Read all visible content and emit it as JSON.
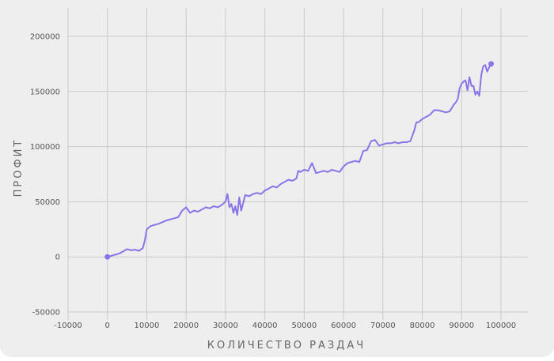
{
  "chart_data": {
    "type": "line",
    "title": "",
    "xlabel": "КОЛИЧЕСТВО РАЗДАЧ",
    "ylabel": "ПРОФИТ",
    "xlim": [
      -10000,
      105000
    ],
    "ylim": [
      -50000,
      210000
    ],
    "xticks": [
      -10000,
      0,
      10000,
      20000,
      30000,
      40000,
      50000,
      60000,
      70000,
      80000,
      90000,
      100000
    ],
    "yticks": [
      -50000,
      0,
      50000,
      100000,
      150000,
      200000
    ],
    "grid": true,
    "legend": "none",
    "series": [
      {
        "color": "#8b73e8",
        "x": [
          0,
          1000,
          2000,
          3000,
          4000,
          5000,
          6000,
          7000,
          8000,
          9000,
          9500,
          10000,
          11000,
          12000,
          13000,
          15000,
          17000,
          18000,
          19000,
          20000,
          21000,
          22000,
          23000,
          24000,
          25000,
          26000,
          27000,
          28000,
          29000,
          30000,
          30500,
          31000,
          31500,
          32000,
          32500,
          33000,
          33500,
          34000,
          35000,
          36000,
          37000,
          38000,
          39000,
          40000,
          41000,
          42000,
          43000,
          44000,
          45000,
          46000,
          47000,
          48000,
          48500,
          49000,
          50000,
          51000,
          52000,
          53000,
          54000,
          55000,
          56000,
          57000,
          58000,
          59000,
          60000,
          61000,
          62000,
          63000,
          64000,
          65000,
          66000,
          67000,
          68000,
          69000,
          70000,
          71000,
          72000,
          73000,
          74000,
          75000,
          76000,
          77000,
          77500,
          78000,
          78500,
          79000,
          80000,
          81000,
          82000,
          83000,
          84000,
          85000,
          86000,
          87000,
          88000,
          88500,
          89000,
          89500,
          90000,
          90500,
          91000,
          91500,
          92000,
          92500,
          93000,
          93500,
          94000,
          94500,
          95000,
          95500,
          96000,
          96500,
          97000,
          97500
        ],
        "y": [
          0,
          1000,
          2000,
          3000,
          5000,
          7000,
          6000,
          6500,
          5500,
          8000,
          15000,
          25000,
          28000,
          29000,
          30000,
          33000,
          35000,
          36000,
          42000,
          45000,
          40000,
          42000,
          41000,
          43000,
          45000,
          44000,
          46000,
          45000,
          47000,
          50000,
          57000,
          45000,
          48000,
          40000,
          46000,
          38000,
          54000,
          42000,
          56000,
          55000,
          57000,
          58000,
          57000,
          60000,
          62000,
          64000,
          63000,
          66000,
          68000,
          70000,
          69000,
          71000,
          78000,
          77000,
          79000,
          78000,
          85000,
          76000,
          77000,
          78000,
          77000,
          79000,
          78000,
          77000,
          82000,
          85000,
          86000,
          87000,
          86000,
          96000,
          97000,
          105000,
          106000,
          101000,
          102000,
          103000,
          103000,
          104000,
          103000,
          104000,
          104000,
          105000,
          110000,
          115000,
          122000,
          122000,
          125000,
          127000,
          129000,
          133000,
          133000,
          132000,
          131000,
          132000,
          138000,
          140000,
          143000,
          153000,
          157000,
          159000,
          160000,
          151000,
          163000,
          155000,
          155000,
          147000,
          150000,
          146000,
          165000,
          173000,
          174000,
          168000,
          172000,
          175000
        ]
      }
    ]
  }
}
